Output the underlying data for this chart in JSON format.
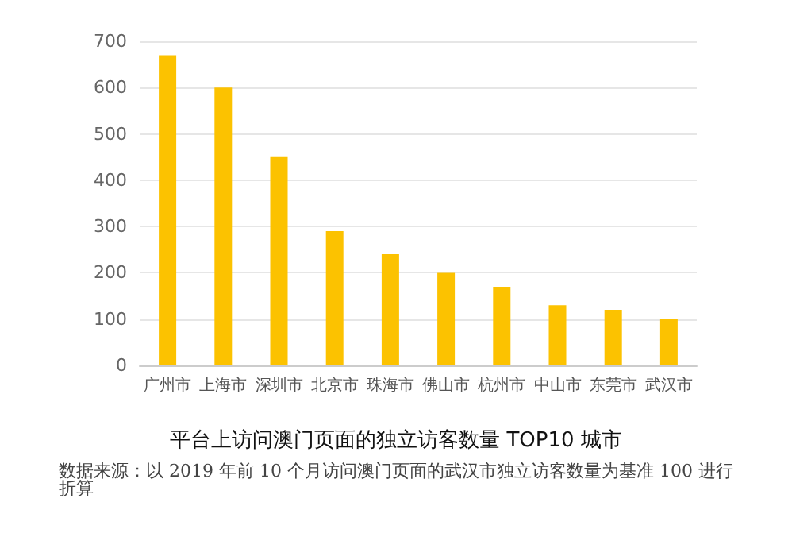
{
  "chart_data": {
    "type": "bar",
    "title": "平台上访问澳门页面的独立访客数量 TOP10 城市",
    "annotations": [
      "数据来源：以 2019 年前 10 个月访问澳门页面的武汉市独立访客数量为基准 100 进行折算"
    ],
    "categories": [
      "广州市",
      "上海市",
      "深圳市",
      "北京市",
      "珠海市",
      "佛山市",
      "杭州市",
      "中山市",
      "东莞市",
      "武汉市"
    ],
    "values": [
      670,
      600,
      450,
      290,
      240,
      200,
      170,
      130,
      120,
      100
    ],
    "color": "#fcc200",
    "ylim": [
      0,
      700
    ],
    "yticks": [
      0,
      100,
      200,
      300,
      400,
      500,
      600,
      700
    ],
    "grid": true
  }
}
